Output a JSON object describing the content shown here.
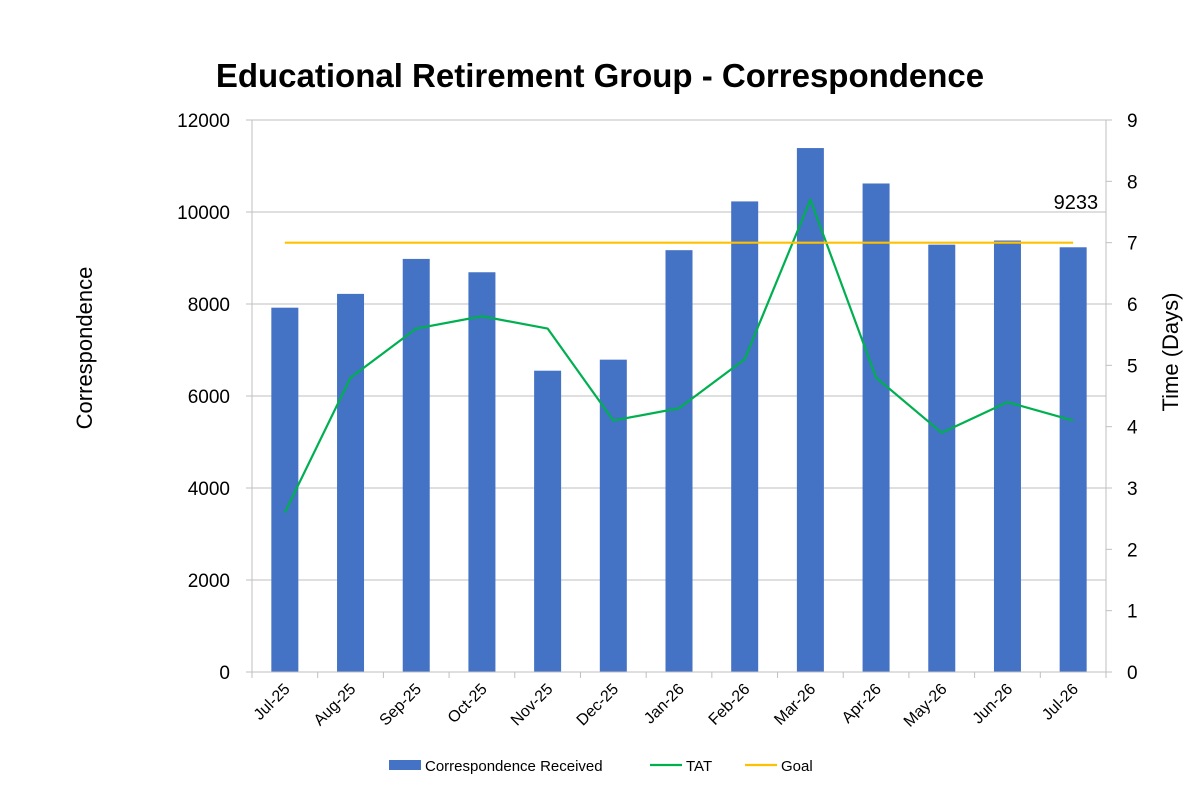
{
  "chart_data": {
    "type": "bar",
    "title": "Educational Retirement Group - Correspondence",
    "categories": [
      "Jul-25",
      "Aug-25",
      "Sep-25",
      "Oct-25",
      "Nov-25",
      "Dec-25",
      "Jan-26",
      "Feb-26",
      "Mar-26",
      "Apr-26",
      "May-26",
      "Jun-26",
      "Jul-26"
    ],
    "series": [
      {
        "name": "Correspondence Received",
        "type": "bar",
        "axis": "left",
        "color": "#4472C4",
        "values": [
          7920,
          8220,
          8980,
          8690,
          6550,
          6790,
          9170,
          10230,
          11390,
          10620,
          9290,
          9380,
          9233
        ]
      },
      {
        "name": "TAT",
        "type": "line",
        "axis": "right",
        "color": "#00B050",
        "values": [
          2.6,
          4.8,
          5.6,
          5.8,
          5.6,
          4.1,
          4.3,
          5.1,
          7.7,
          4.8,
          3.9,
          4.4,
          4.1
        ]
      },
      {
        "name": "Goal",
        "type": "line",
        "axis": "right",
        "color": "#FFC000",
        "values": [
          7,
          7,
          7,
          7,
          7,
          7,
          7,
          7,
          7,
          7,
          7,
          7,
          7
        ]
      }
    ],
    "ylabel": "Correspondence",
    "y2label": "Time (Days)",
    "ylim": [
      0,
      12000
    ],
    "yticks": [
      "0",
      "2000",
      "4000",
      "6000",
      "8000",
      "10000",
      "12000"
    ],
    "y2lim": [
      0,
      9
    ],
    "y2ticks": [
      "0",
      "1",
      "2",
      "3",
      "4",
      "5",
      "6",
      "7",
      "8",
      "9"
    ],
    "annotations": [
      {
        "text": "9233",
        "category": "Jul-26"
      }
    ],
    "grid": true,
    "legend_position": "bottom"
  }
}
